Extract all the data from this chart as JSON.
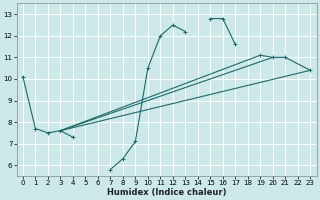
{
  "xlabel": "Humidex (Indice chaleur)",
  "ylabel": "",
  "bg_color": "#cce8e8",
  "grid_color": "#ffffff",
  "line_color": "#1a6b6b",
  "xlim": [
    -0.5,
    23.5
  ],
  "ylim": [
    5.5,
    13.5
  ],
  "xticks": [
    0,
    1,
    2,
    3,
    4,
    5,
    6,
    7,
    8,
    9,
    10,
    11,
    12,
    13,
    14,
    15,
    16,
    17,
    18,
    19,
    20,
    21,
    22,
    23
  ],
  "yticks": [
    6,
    7,
    8,
    9,
    10,
    11,
    12,
    13
  ],
  "curve": {
    "x": [
      0,
      1,
      2,
      3,
      4,
      7,
      8,
      9,
      10,
      11,
      12,
      13,
      15,
      16,
      17,
      19,
      20,
      21,
      23
    ],
    "y": [
      10.1,
      7.7,
      7.5,
      7.6,
      7.3,
      5.8,
      6.3,
      7.1,
      10.5,
      12.0,
      12.5,
      12.2,
      12.8,
      12.8,
      11.6,
      11.1,
      11.0,
      11.0,
      10.4
    ],
    "breaks_after": [
      4,
      13,
      17
    ]
  },
  "straight_lines": [
    {
      "x": [
        3,
        23
      ],
      "y": [
        7.6,
        10.4
      ]
    },
    {
      "x": [
        3,
        19
      ],
      "y": [
        7.6,
        11.1
      ]
    },
    {
      "x": [
        3,
        20
      ],
      "y": [
        7.6,
        11.0
      ]
    }
  ],
  "tick_fontsize": 5.0,
  "xlabel_fontsize": 6.0,
  "linewidth": 0.8,
  "marker_size": 3.5,
  "marker_ew": 0.7
}
